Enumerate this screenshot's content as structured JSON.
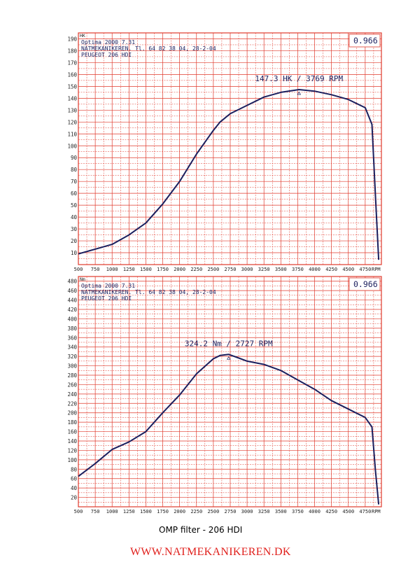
{
  "caption": "OMP filter - 206 HDI",
  "footer": "WWW.NATMEKANIKEREN.DK",
  "colors": {
    "grid": "#e03a2c",
    "curve": "#1b1f5e",
    "text": "#1b1f5e",
    "axis_text": "#222222",
    "footer": "#e0201c"
  },
  "chart_data": [
    {
      "type": "line",
      "unit_label": "HK",
      "corner_value": "0.966",
      "header_lines": [
        "Optima 2000 7.31",
        "NATMEKANIKEREN. Tl. 64 82 38 04, 28-2-04",
        "PEUGEOT 206 HDI"
      ],
      "peak_label": "147.3 HK / 3769 RPM",
      "peak": {
        "x": 3769,
        "y": 147.3
      },
      "xlim": [
        500,
        4990
      ],
      "ylim": [
        0,
        195
      ],
      "x_ticks": [
        500,
        750,
        1000,
        1250,
        1500,
        1750,
        2000,
        2250,
        2500,
        2750,
        3000,
        3250,
        3500,
        3750,
        4000,
        4250,
        4500,
        4750
      ],
      "x_tick_labels": [
        "500",
        "750",
        "1000",
        "1250",
        "1500",
        "1750",
        "2000",
        "2250",
        "2500",
        "2750",
        "3000",
        "3250",
        "3500",
        "3750",
        "4000",
        "4250",
        "4500",
        "4750"
      ],
      "x_unit_label": "RPM",
      "y_ticks": [
        10,
        20,
        30,
        40,
        50,
        60,
        70,
        80,
        90,
        100,
        110,
        120,
        130,
        140,
        150,
        160,
        170,
        180,
        190
      ],
      "x_grid_step": 125,
      "y_grid_step": 5,
      "series": [
        {
          "x": [
            500,
            750,
            1000,
            1250,
            1500,
            1750,
            2000,
            2250,
            2500,
            2600,
            2750,
            3000,
            3250,
            3500,
            3769,
            4000,
            4250,
            4500,
            4750,
            4850,
            4900,
            4950
          ],
          "y": [
            9,
            13,
            17,
            25,
            35,
            51,
            70,
            93,
            113,
            120,
            127,
            134,
            141,
            145,
            147.3,
            146,
            143,
            139,
            132,
            118,
            60,
            4
          ]
        }
      ]
    },
    {
      "type": "line",
      "unit_label": "Nm",
      "corner_value": "0.966",
      "header_lines": [
        "Optima 2000 7.31",
        "NATMEKANIKEREN. Tl. 64 82 38 04, 28-2-04",
        "PEUGEOT 206 HDI"
      ],
      "peak_label": "324.2 Nm / 2727 RPM",
      "peak": {
        "x": 2727,
        "y": 324.2
      },
      "xlim": [
        500,
        4990
      ],
      "ylim": [
        0,
        490
      ],
      "x_ticks": [
        500,
        750,
        1000,
        1250,
        1500,
        1750,
        2000,
        2250,
        2500,
        2750,
        3000,
        3250,
        3500,
        3750,
        4000,
        4250,
        4500,
        4750
      ],
      "x_tick_labels": [
        "500",
        "750",
        "1000",
        "1250",
        "1500",
        "1750",
        "2000",
        "2250",
        "2500",
        "2750",
        "3000",
        "3250",
        "3500",
        "3750",
        "4000",
        "4250",
        "4500",
        "4750"
      ],
      "x_unit_label": "RPM",
      "y_ticks": [
        20,
        40,
        60,
        80,
        100,
        120,
        140,
        160,
        180,
        200,
        220,
        240,
        260,
        280,
        300,
        320,
        340,
        360,
        380,
        400,
        420,
        440,
        460,
        480
      ],
      "x_grid_step": 125,
      "y_grid_step": 10,
      "series": [
        {
          "x": [
            500,
            750,
            1000,
            1250,
            1500,
            1750,
            2000,
            2250,
            2500,
            2600,
            2727,
            2850,
            3000,
            3250,
            3500,
            3750,
            4000,
            4250,
            4500,
            4750,
            4850,
            4900,
            4950
          ],
          "y": [
            65,
            92,
            122,
            138,
            160,
            200,
            238,
            283,
            315,
            322,
            324.2,
            318,
            310,
            303,
            290,
            270,
            250,
            226,
            208,
            190,
            170,
            80,
            5
          ]
        }
      ]
    }
  ]
}
